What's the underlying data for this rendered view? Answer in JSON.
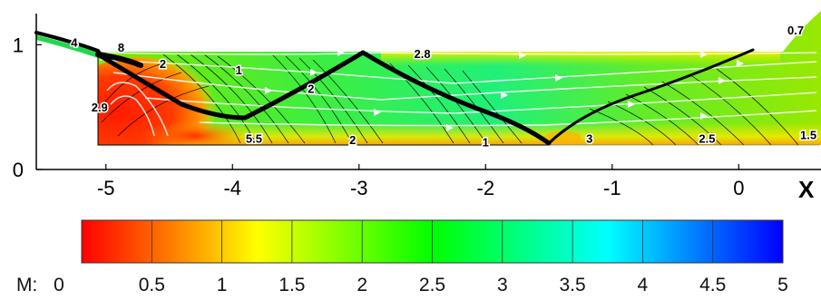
{
  "chart_data": {
    "type": "heatmap",
    "title": "",
    "xlabel": "X",
    "ylabel": "",
    "xlim": [
      -5.55,
      0.65
    ],
    "ylim": [
      0,
      1.25
    ],
    "x_ticks": [
      "-5",
      "-4",
      "-3",
      "-2",
      "-1",
      "0"
    ],
    "x_tick_values": [
      -5,
      -4,
      -3,
      -2,
      -1,
      0
    ],
    "y_ticks": [
      "0",
      "1"
    ],
    "y_tick_values": [
      0,
      1
    ],
    "contour_labels": [
      {
        "text": "4",
        "x": -5.25,
        "y": 1.02
      },
      {
        "text": "8",
        "x": -4.88,
        "y": 0.98
      },
      {
        "text": "2",
        "x": -4.55,
        "y": 0.85
      },
      {
        "text": "1",
        "x": -3.95,
        "y": 0.8
      },
      {
        "text": "2",
        "x": -3.38,
        "y": 0.65
      },
      {
        "text": "2.8",
        "x": -2.5,
        "y": 0.93
      },
      {
        "text": "0.7",
        "x": 0.45,
        "y": 1.12
      },
      {
        "text": "2.9",
        "x": -5.05,
        "y": 0.5
      },
      {
        "text": "5.5",
        "x": -3.83,
        "y": 0.25
      },
      {
        "text": "2",
        "x": -3.05,
        "y": 0.24
      },
      {
        "text": "1",
        "x": -2.0,
        "y": 0.22
      },
      {
        "text": "3",
        "x": -1.18,
        "y": 0.25
      },
      {
        "text": "2.5",
        "x": -0.25,
        "y": 0.25
      },
      {
        "text": "1.5",
        "x": 0.55,
        "y": 0.28
      }
    ],
    "colorbar": {
      "label": "M:",
      "min": 0,
      "max": 5,
      "ticks": [
        "0",
        "0.5",
        "1",
        "1.5",
        "2",
        "2.5",
        "3",
        "3.5",
        "4",
        "4.5",
        "5"
      ],
      "colors": [
        "#ff0000",
        "#ff7a00",
        "#ffff00",
        "#7fff00",
        "#00ff00",
        "#00ff7f",
        "#00ffff",
        "#007fff",
        "#0000ff"
      ]
    },
    "grid": false,
    "legend": "bottom"
  }
}
